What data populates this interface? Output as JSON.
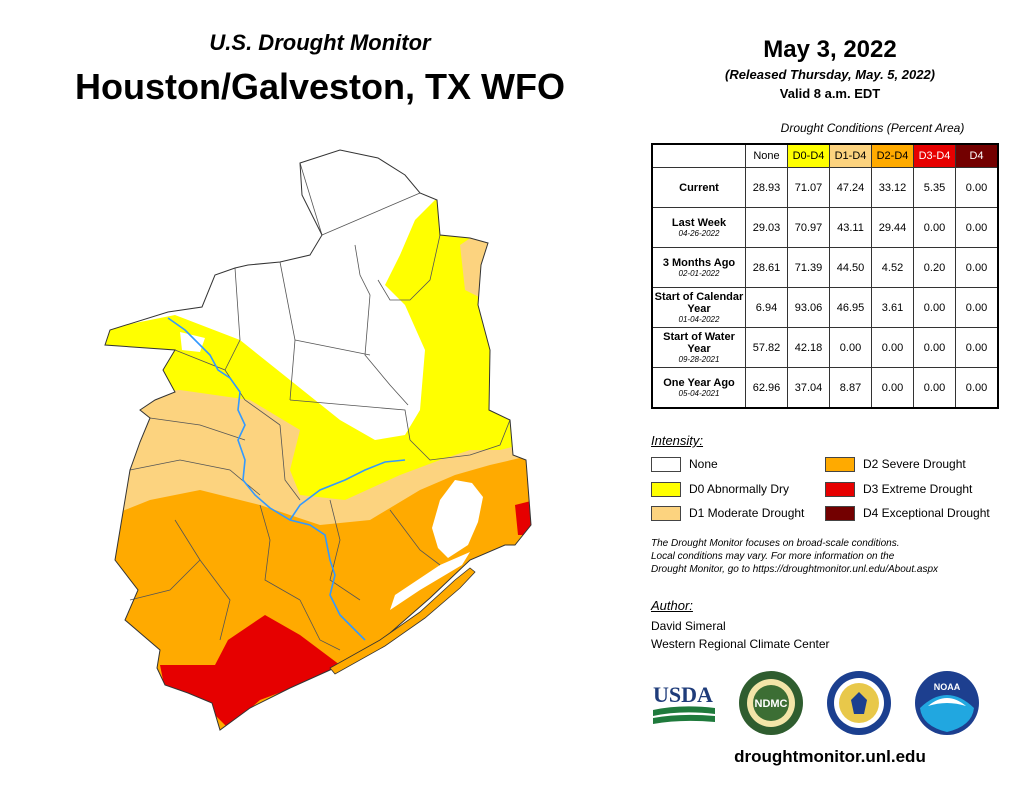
{
  "header": {
    "subtitle": "U.S. Drought Monitor",
    "title": "Houston/Galveston, TX WFO",
    "date": "May 3, 2022",
    "released": "(Released Thursday, May. 5, 2022)",
    "valid": "Valid 8 a.m. EDT"
  },
  "table": {
    "caption": "Drought Conditions (Percent Area)",
    "columns": [
      "None",
      "D0-D4",
      "D1-D4",
      "D2-D4",
      "D3-D4",
      "D4"
    ],
    "rows": [
      {
        "label": "Current",
        "date": "",
        "values": [
          "28.93",
          "71.07",
          "47.24",
          "33.12",
          "5.35",
          "0.00"
        ]
      },
      {
        "label": "Last Week",
        "date": "04-26-2022",
        "values": [
          "29.03",
          "70.97",
          "43.11",
          "29.44",
          "0.00",
          "0.00"
        ]
      },
      {
        "label": "3 Months Ago",
        "date": "02-01-2022",
        "values": [
          "28.61",
          "71.39",
          "44.50",
          "4.52",
          "0.20",
          "0.00"
        ]
      },
      {
        "label": "Start of Calendar Year",
        "date": "01-04-2022",
        "values": [
          "6.94",
          "93.06",
          "46.95",
          "3.61",
          "0.00",
          "0.00"
        ]
      },
      {
        "label": "Start of Water Year",
        "date": "09-28-2021",
        "values": [
          "57.82",
          "42.18",
          "0.00",
          "0.00",
          "0.00",
          "0.00"
        ]
      },
      {
        "label": "One Year Ago",
        "date": "05-04-2021",
        "values": [
          "62.96",
          "37.04",
          "8.87",
          "0.00",
          "0.00",
          "0.00"
        ]
      }
    ]
  },
  "legend": {
    "heading": "Intensity:",
    "items": [
      {
        "label": "None",
        "color": "#ffffff"
      },
      {
        "label": "D0 Abnormally Dry",
        "color": "#ffff00"
      },
      {
        "label": "D1 Moderate Drought",
        "color": "#fcd37f"
      },
      {
        "label": "D2 Severe Drought",
        "color": "#ffaa00"
      },
      {
        "label": "D3 Extreme Drought",
        "color": "#e60000"
      },
      {
        "label": "D4 Exceptional Drought",
        "color": "#730000"
      }
    ]
  },
  "disclaimer": {
    "line1": "The Drought Monitor focuses on broad-scale conditions.",
    "line2": "Local conditions may vary. For more information on the",
    "line3": "Drought Monitor, go to https://droughtmonitor.unl.edu/About.aspx"
  },
  "author": {
    "heading": "Author:",
    "name": "David Simeral",
    "org": "Western Regional Climate Center"
  },
  "logos": {
    "usda": "USDA",
    "ndmc": "NDMC",
    "noaa": "NOAA",
    "icons": [
      "usda-logo-icon",
      "ndmc-logo-icon",
      "commerce-seal-icon",
      "noaa-logo-icon"
    ]
  },
  "website": "droughtmonitor.unl.edu",
  "map": {
    "river_color": "#3399ff",
    "water_color": "#ffffff"
  }
}
